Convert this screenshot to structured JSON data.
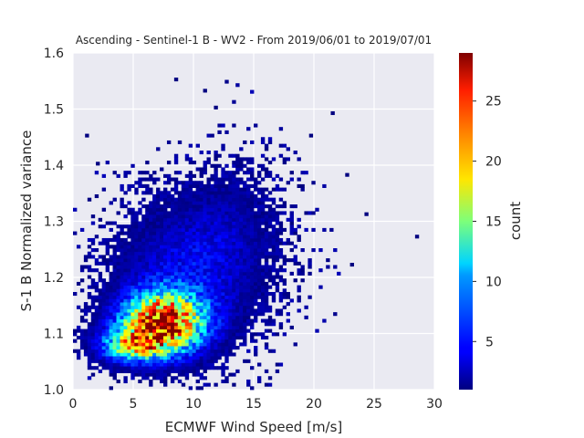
{
  "chart_data": {
    "type": "heatmap",
    "title": "Ascending - Sentinel-1 B - WV2 - From 2019/06/01 to 2019/07/01",
    "xlabel": "ECMWF Wind Speed [m/s]",
    "ylabel": "S-1 B Normalized variance",
    "xlim": [
      0,
      30
    ],
    "ylim": [
      1.0,
      1.6
    ],
    "x_ticks": [
      "0",
      "5",
      "10",
      "15",
      "20",
      "25",
      "30"
    ],
    "y_ticks": [
      "1.0",
      "1.1",
      "1.2",
      "1.3",
      "1.4",
      "1.5",
      "1.6"
    ],
    "grid": true,
    "bins": {
      "x_width": 0.3,
      "y_width": 0.006
    },
    "density": {
      "clusters": [
        {
          "x": 7.5,
          "y": 1.12,
          "sx": 2.2,
          "sy": 0.035,
          "peak": 26
        },
        {
          "x": 5.0,
          "y": 1.08,
          "sx": 1.8,
          "sy": 0.02,
          "peak": 14
        },
        {
          "x": 9.5,
          "y": 1.2,
          "sx": 3.8,
          "sy": 0.08,
          "peak": 4
        },
        {
          "x": 13.0,
          "y": 1.3,
          "sx": 3.0,
          "sy": 0.07,
          "peak": 1.5
        }
      ]
    },
    "colorbar": {
      "label": "count",
      "min": 1,
      "max": 29,
      "ticks": [
        "5",
        "10",
        "15",
        "20",
        "25"
      ],
      "colormap": "jet"
    }
  }
}
